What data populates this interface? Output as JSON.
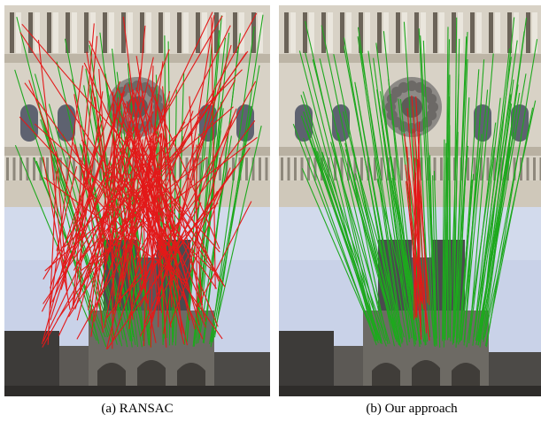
{
  "captions": {
    "a": "(a) RANSAC",
    "b": "(b) Our approach"
  },
  "figure": {
    "subject": "Notre-Dame cathedral facade (stacked image pair with feature-match lines)",
    "colors": {
      "inlier": "#1ea81e",
      "outlier": "#e31919",
      "sky": "#c9d2e8",
      "stone": "#d8d2c6"
    },
    "panel_a": {
      "method": "RANSAC",
      "red_lines": 150,
      "green_lines": 60
    },
    "panel_b": {
      "method": "Our approach",
      "red_lines": 15,
      "green_lines": 110
    }
  }
}
